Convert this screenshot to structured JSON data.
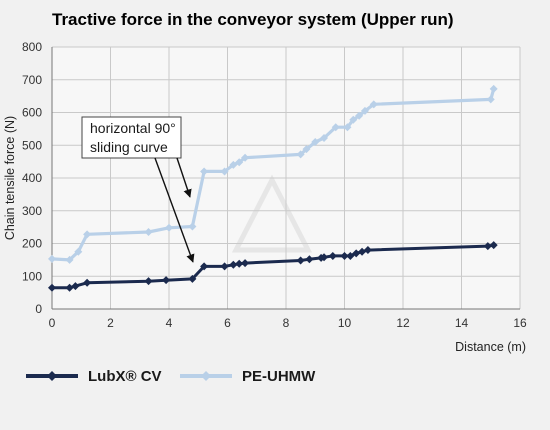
{
  "chart_data": {
    "type": "line",
    "title": "Tractive force in the conveyor system (Upper run)",
    "xlabel": "Distance (m)",
    "ylabel": "Chain tensile force (N)",
    "xlim": [
      0,
      16
    ],
    "ylim": [
      0,
      800
    ],
    "x_ticks": [
      "0",
      "2",
      "4",
      "6",
      "8",
      "10",
      "12",
      "14",
      "16"
    ],
    "y_ticks": [
      "0",
      "100",
      "200",
      "300",
      "400",
      "500",
      "600",
      "700",
      "800"
    ],
    "grid": true,
    "legend_position": "bottom-left",
    "annotation": {
      "lines": [
        "horizontal 90°",
        "sliding curve"
      ]
    },
    "series": [
      {
        "name": "LubX® CV",
        "color": "#1b2a4e",
        "points": [
          [
            0.0,
            65
          ],
          [
            0.6,
            65
          ],
          [
            0.8,
            70
          ],
          [
            1.2,
            80
          ],
          [
            3.3,
            85
          ],
          [
            3.9,
            88
          ],
          [
            4.8,
            92
          ],
          [
            5.2,
            130
          ],
          [
            5.9,
            130
          ],
          [
            6.2,
            135
          ],
          [
            6.4,
            138
          ],
          [
            6.6,
            140
          ],
          [
            8.5,
            148
          ],
          [
            8.8,
            152
          ],
          [
            9.2,
            156
          ],
          [
            9.3,
            158
          ],
          [
            9.6,
            162
          ],
          [
            10.0,
            162
          ],
          [
            10.2,
            162
          ],
          [
            10.4,
            170
          ],
          [
            10.6,
            175
          ],
          [
            10.8,
            180
          ],
          [
            14.9,
            192
          ],
          [
            15.1,
            195
          ]
        ]
      },
      {
        "name": "PE-UHMW",
        "color": "#b9d0e8",
        "points": [
          [
            0.0,
            153
          ],
          [
            0.6,
            150
          ],
          [
            0.9,
            175
          ],
          [
            1.2,
            228
          ],
          [
            3.3,
            235
          ],
          [
            4.0,
            248
          ],
          [
            4.8,
            252
          ],
          [
            5.2,
            420
          ],
          [
            5.9,
            420
          ],
          [
            6.2,
            440
          ],
          [
            6.4,
            448
          ],
          [
            6.6,
            462
          ],
          [
            8.5,
            472
          ],
          [
            8.7,
            488
          ],
          [
            9.0,
            510
          ],
          [
            9.3,
            522
          ],
          [
            9.7,
            555
          ],
          [
            10.1,
            555
          ],
          [
            10.3,
            578
          ],
          [
            10.5,
            590
          ],
          [
            10.7,
            605
          ],
          [
            11.0,
            625
          ],
          [
            15.0,
            640
          ],
          [
            15.1,
            672
          ]
        ]
      }
    ]
  }
}
